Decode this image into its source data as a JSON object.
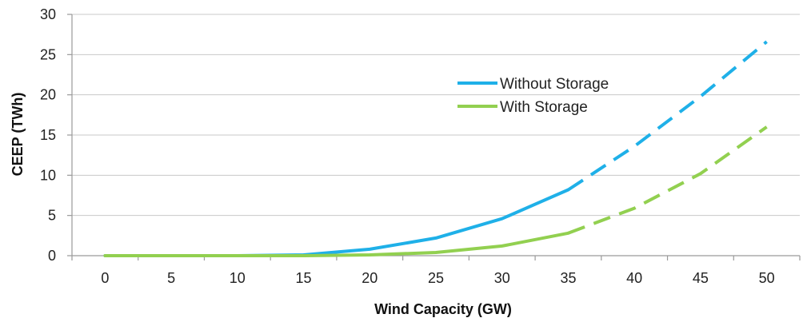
{
  "chart_data": {
    "type": "line",
    "xlabel": "Wind Capacity (GW)",
    "ylabel": "CEEP (TWh)",
    "x": [
      0,
      5,
      10,
      15,
      20,
      25,
      30,
      35,
      40,
      45,
      50
    ],
    "xlim": [
      0,
      50
    ],
    "ylim": [
      0,
      30
    ],
    "x_ticks": [
      "0",
      "5",
      "10",
      "15",
      "20",
      "25",
      "30",
      "35",
      "40",
      "45",
      "50"
    ],
    "y_ticks": [
      "0",
      "5",
      "10",
      "15",
      "20",
      "25",
      "30"
    ],
    "grid": "horizontal",
    "legend_position": "center",
    "series": [
      {
        "name": "Without Storage",
        "color": "#1fb0e8",
        "values": [
          0,
          0,
          0,
          0.1,
          0.8,
          2.2,
          4.6,
          8.2,
          13.6,
          19.8,
          26.6
        ],
        "solid_until_x": 35,
        "dashed_from_x": 35
      },
      {
        "name": "With Storage",
        "color": "#92d050",
        "values": [
          0,
          0,
          0,
          0,
          0.1,
          0.4,
          1.2,
          2.8,
          5.9,
          10.2,
          16.0
        ],
        "solid_until_x": 35,
        "dashed_from_x": 35
      }
    ]
  }
}
